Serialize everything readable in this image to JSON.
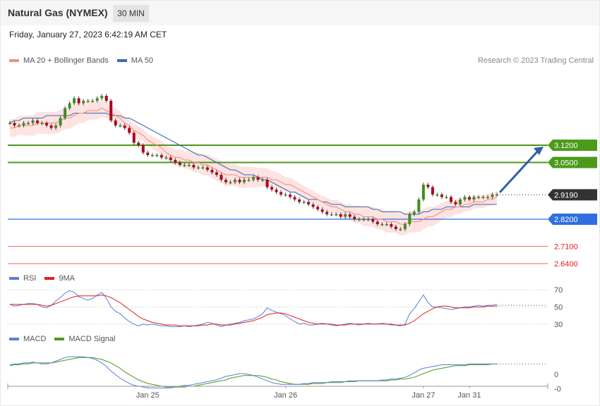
{
  "header": {
    "title": "Natural Gas (NYMEX)",
    "interval": "30 MIN",
    "datetime": "Friday, January 27, 2023 6:42:19 AM CET",
    "credit": "Research © 2023 Trading Central"
  },
  "legends": {
    "price": [
      {
        "label": "MA 20 + Bollinger Bands",
        "color": "#f28b82"
      },
      {
        "label": "MA 50",
        "color": "#3b6bb5"
      }
    ],
    "rsi": [
      {
        "label": "RSI",
        "color": "#5b7fd6"
      },
      {
        "label": "9MA",
        "color": "#e0201f"
      }
    ],
    "macd": [
      {
        "label": "MACD",
        "color": "#5b7fd6"
      },
      {
        "label": "MACD Signal",
        "color": "#4c9a1a"
      }
    ]
  },
  "chart_data": [
    {
      "type": "candlestick",
      "title": "Natural Gas (NYMEX)",
      "ylim": [
        2.6,
        3.4
      ],
      "levels": [
        {
          "value": 3.12,
          "label": "3.1200",
          "color": "#4c9a1a",
          "style": "resistance"
        },
        {
          "value": 3.05,
          "label": "3.0500",
          "color": "#4c9a1a",
          "style": "resistance"
        },
        {
          "value": 2.919,
          "label": "2.9190",
          "color": "#333333",
          "style": "last"
        },
        {
          "value": 2.82,
          "label": "2.8200",
          "color": "#2f6fe0",
          "style": "pivot"
        },
        {
          "value": 2.71,
          "label": "2.7100",
          "color": "#e0201f",
          "style": "support"
        },
        {
          "value": 2.64,
          "label": "2.6400",
          "color": "#e0201f",
          "style": "support"
        }
      ],
      "x_ticks": [
        "Jan 25",
        "Jan 26",
        "Jan 27",
        "Jan 31"
      ],
      "close": [
        3.21,
        3.2,
        3.2,
        3.21,
        3.21,
        3.22,
        3.21,
        3.21,
        3.2,
        3.19,
        3.2,
        3.23,
        3.27,
        3.29,
        3.31,
        3.29,
        3.3,
        3.3,
        3.3,
        3.31,
        3.32,
        3.3,
        3.22,
        3.2,
        3.2,
        3.19,
        3.17,
        3.13,
        3.12,
        3.09,
        3.08,
        3.08,
        3.08,
        3.07,
        3.07,
        3.06,
        3.05,
        3.04,
        3.04,
        3.04,
        3.03,
        3.03,
        3.03,
        3.02,
        3.01,
        3.0,
        2.98,
        2.97,
        2.97,
        2.98,
        2.97,
        2.98,
        2.98,
        2.99,
        2.98,
        2.98,
        2.95,
        2.94,
        2.93,
        2.92,
        2.92,
        2.91,
        2.9,
        2.89,
        2.89,
        2.88,
        2.87,
        2.86,
        2.85,
        2.84,
        2.84,
        2.84,
        2.83,
        2.84,
        2.83,
        2.82,
        2.82,
        2.82,
        2.82,
        2.81,
        2.8,
        2.8,
        2.8,
        2.79,
        2.78,
        2.78,
        2.8,
        2.84,
        2.85,
        2.9,
        2.96,
        2.95,
        2.92,
        2.92,
        2.91,
        2.91,
        2.89,
        2.88,
        2.9,
        2.91,
        2.9,
        2.91,
        2.91,
        2.91,
        2.91,
        2.92,
        2.92
      ],
      "ma20": [
        3.19,
        3.19,
        3.2,
        3.2,
        3.2,
        3.2,
        3.21,
        3.21,
        3.21,
        3.21,
        3.21,
        3.22,
        3.23,
        3.23,
        3.24,
        3.25,
        3.25,
        3.26,
        3.26,
        3.26,
        3.27,
        3.26,
        3.25,
        3.24,
        3.23,
        3.21,
        3.2,
        3.18,
        3.17,
        3.16,
        3.14,
        3.13,
        3.12,
        3.11,
        3.09,
        3.08,
        3.07,
        3.07,
        3.06,
        3.06,
        3.05,
        3.05,
        3.04,
        3.04,
        3.03,
        3.02,
        3.01,
        3.0,
        3.0,
        3.0,
        2.99,
        2.99,
        2.99,
        2.99,
        2.99,
        2.99,
        2.99,
        2.98,
        2.98,
        2.97,
        2.96,
        2.96,
        2.95,
        2.94,
        2.93,
        2.92,
        2.91,
        2.9,
        2.89,
        2.88,
        2.87,
        2.87,
        2.86,
        2.85,
        2.85,
        2.84,
        2.84,
        2.83,
        2.83,
        2.83,
        2.82,
        2.82,
        2.81,
        2.81,
        2.81,
        2.8,
        2.8,
        2.81,
        2.81,
        2.81,
        2.82,
        2.83,
        2.83,
        2.84,
        2.85,
        2.86,
        2.86,
        2.87,
        2.87,
        2.88,
        2.88,
        2.89,
        2.89,
        2.89,
        2.9,
        2.9,
        2.91
      ],
      "ma50": [
        3.21,
        3.22,
        3.22,
        3.23,
        3.23,
        3.23,
        3.23,
        3.23,
        3.24,
        3.24,
        3.24,
        3.24,
        3.24,
        3.24,
        3.25,
        3.25,
        3.25,
        3.25,
        3.25,
        3.25,
        3.25,
        3.25,
        3.24,
        3.24,
        3.24,
        3.23,
        3.23,
        3.22,
        3.21,
        3.2,
        3.19,
        3.18,
        3.17,
        3.16,
        3.15,
        3.14,
        3.13,
        3.12,
        3.11,
        3.1,
        3.09,
        3.08,
        3.08,
        3.07,
        3.06,
        3.05,
        3.04,
        3.03,
        3.02,
        3.02,
        3.01,
        3.0,
        3.0,
        3.0,
        2.99,
        2.98,
        2.98,
        2.97,
        2.96,
        2.95,
        2.94,
        2.93,
        2.93,
        2.92,
        2.91,
        2.9,
        2.9,
        2.9,
        2.89,
        2.89,
        2.88,
        2.88,
        2.88,
        2.87,
        2.87,
        2.87,
        2.87,
        2.87,
        2.87,
        2.86,
        2.86,
        2.85,
        2.85,
        2.85,
        2.85,
        2.85,
        2.84,
        2.84,
        2.84,
        2.84,
        2.85,
        2.85,
        2.86,
        2.86,
        2.86,
        2.87,
        2.87,
        2.87,
        2.87,
        2.87,
        2.87,
        2.88,
        2.88,
        2.88,
        2.88,
        2.88,
        2.88
      ]
    },
    {
      "type": "line",
      "title": "RSI",
      "ylim": [
        20,
        80
      ],
      "y_ticks": [
        70,
        50,
        30
      ],
      "series": [
        {
          "name": "RSI",
          "color": "#5b7fd6",
          "values": [
            53,
            51,
            52,
            53,
            54,
            54,
            53,
            50,
            49,
            52,
            57,
            61,
            66,
            69,
            67,
            62,
            60,
            58,
            60,
            64,
            67,
            60,
            50,
            45,
            42,
            37,
            33,
            30,
            28,
            30,
            29,
            30,
            29,
            28,
            28,
            27,
            27,
            27,
            28,
            27,
            28,
            29,
            30,
            32,
            31,
            29,
            27,
            29,
            30,
            31,
            32,
            34,
            35,
            36,
            39,
            42,
            49,
            46,
            44,
            42,
            40,
            36,
            33,
            30,
            31,
            29,
            29,
            30,
            31,
            30,
            29,
            28,
            29,
            30,
            31,
            30,
            29,
            30,
            31,
            30,
            30,
            31,
            30,
            29,
            29,
            28,
            30,
            42,
            48,
            56,
            64,
            55,
            50,
            50,
            49,
            48,
            47,
            48,
            49,
            50,
            50,
            51,
            52,
            51,
            52,
            52,
            53
          ]
        },
        {
          "name": "9MA",
          "color": "#e0201f",
          "values": [
            53,
            53,
            53,
            53,
            53,
            53,
            53,
            52,
            51,
            52,
            54,
            56,
            58,
            60,
            62,
            63,
            63,
            63,
            63,
            63,
            64,
            63,
            61,
            58,
            55,
            51,
            47,
            43,
            39,
            36,
            34,
            32,
            31,
            30,
            29,
            29,
            29,
            28,
            28,
            28,
            28,
            28,
            29,
            29,
            30,
            30,
            29,
            29,
            29,
            30,
            31,
            32,
            33,
            34,
            36,
            38,
            41,
            42,
            43,
            43,
            42,
            40,
            38,
            36,
            34,
            32,
            31,
            30,
            30,
            30,
            30,
            29,
            29,
            29,
            30,
            30,
            30,
            30,
            30,
            30,
            30,
            30,
            30,
            30,
            29,
            29,
            29,
            31,
            34,
            38,
            42,
            45,
            48,
            50,
            51,
            51,
            50,
            49,
            49,
            49,
            49,
            50,
            50,
            50,
            51,
            51,
            51
          ]
        }
      ]
    },
    {
      "type": "line",
      "title": "MACD",
      "ylim": [
        -0.03,
        0.03
      ],
      "y_ticks_labels": [
        "0",
        "-0"
      ],
      "series": [
        {
          "name": "MACD",
          "color": "#5b7fd6",
          "values": [
            0.002,
            0.003,
            0.003,
            0.004,
            0.004,
            0.005,
            0.004,
            0.003,
            0.003,
            0.004,
            0.006,
            0.008,
            0.01,
            0.011,
            0.011,
            0.011,
            0.011,
            0.01,
            0.009,
            0.007,
            0.004,
            0.0,
            -0.005,
            -0.009,
            -0.013,
            -0.016,
            -0.019,
            -0.021,
            -0.022,
            -0.023,
            -0.024,
            -0.024,
            -0.024,
            -0.024,
            -0.024,
            -0.024,
            -0.023,
            -0.022,
            -0.021,
            -0.021,
            -0.02,
            -0.019,
            -0.018,
            -0.017,
            -0.016,
            -0.015,
            -0.013,
            -0.011,
            -0.01,
            -0.009,
            -0.008,
            -0.008,
            -0.009,
            -0.01,
            -0.012,
            -0.014,
            -0.016,
            -0.018,
            -0.019,
            -0.02,
            -0.02,
            -0.02,
            -0.02,
            -0.02,
            -0.019,
            -0.019,
            -0.018,
            -0.018,
            -0.018,
            -0.018,
            -0.017,
            -0.017,
            -0.017,
            -0.017,
            -0.016,
            -0.016,
            -0.016,
            -0.016,
            -0.016,
            -0.016,
            -0.016,
            -0.015,
            -0.015,
            -0.014,
            -0.014,
            -0.013,
            -0.012,
            -0.01,
            -0.007,
            -0.004,
            -0.002,
            -0.001,
            0.0,
            0.001,
            0.002,
            0.002,
            0.002,
            0.002,
            0.002,
            0.002,
            0.003,
            0.003,
            0.003,
            0.003,
            0.003,
            0.003
          ]
        },
        {
          "name": "MACD Signal",
          "color": "#4c9a1a",
          "values": [
            0.001,
            0.002,
            0.002,
            0.003,
            0.003,
            0.004,
            0.004,
            0.004,
            0.004,
            0.004,
            0.005,
            0.006,
            0.007,
            0.008,
            0.009,
            0.01,
            0.01,
            0.01,
            0.01,
            0.009,
            0.008,
            0.006,
            0.004,
            0.001,
            -0.002,
            -0.006,
            -0.009,
            -0.012,
            -0.015,
            -0.017,
            -0.019,
            -0.02,
            -0.021,
            -0.022,
            -0.023,
            -0.023,
            -0.023,
            -0.023,
            -0.023,
            -0.022,
            -0.022,
            -0.021,
            -0.02,
            -0.019,
            -0.018,
            -0.017,
            -0.016,
            -0.015,
            -0.013,
            -0.012,
            -0.011,
            -0.01,
            -0.01,
            -0.01,
            -0.01,
            -0.011,
            -0.012,
            -0.014,
            -0.015,
            -0.017,
            -0.018,
            -0.019,
            -0.02,
            -0.02,
            -0.02,
            -0.02,
            -0.019,
            -0.019,
            -0.019,
            -0.018,
            -0.018,
            -0.018,
            -0.018,
            -0.017,
            -0.017,
            -0.017,
            -0.016,
            -0.016,
            -0.016,
            -0.016,
            -0.016,
            -0.016,
            -0.016,
            -0.015,
            -0.015,
            -0.014,
            -0.014,
            -0.013,
            -0.012,
            -0.01,
            -0.008,
            -0.006,
            -0.004,
            -0.003,
            -0.002,
            -0.001,
            0.0,
            0.001,
            0.001,
            0.001,
            0.002,
            0.002,
            0.002,
            0.002,
            0.002,
            0.003,
            0.003
          ]
        }
      ]
    }
  ]
}
